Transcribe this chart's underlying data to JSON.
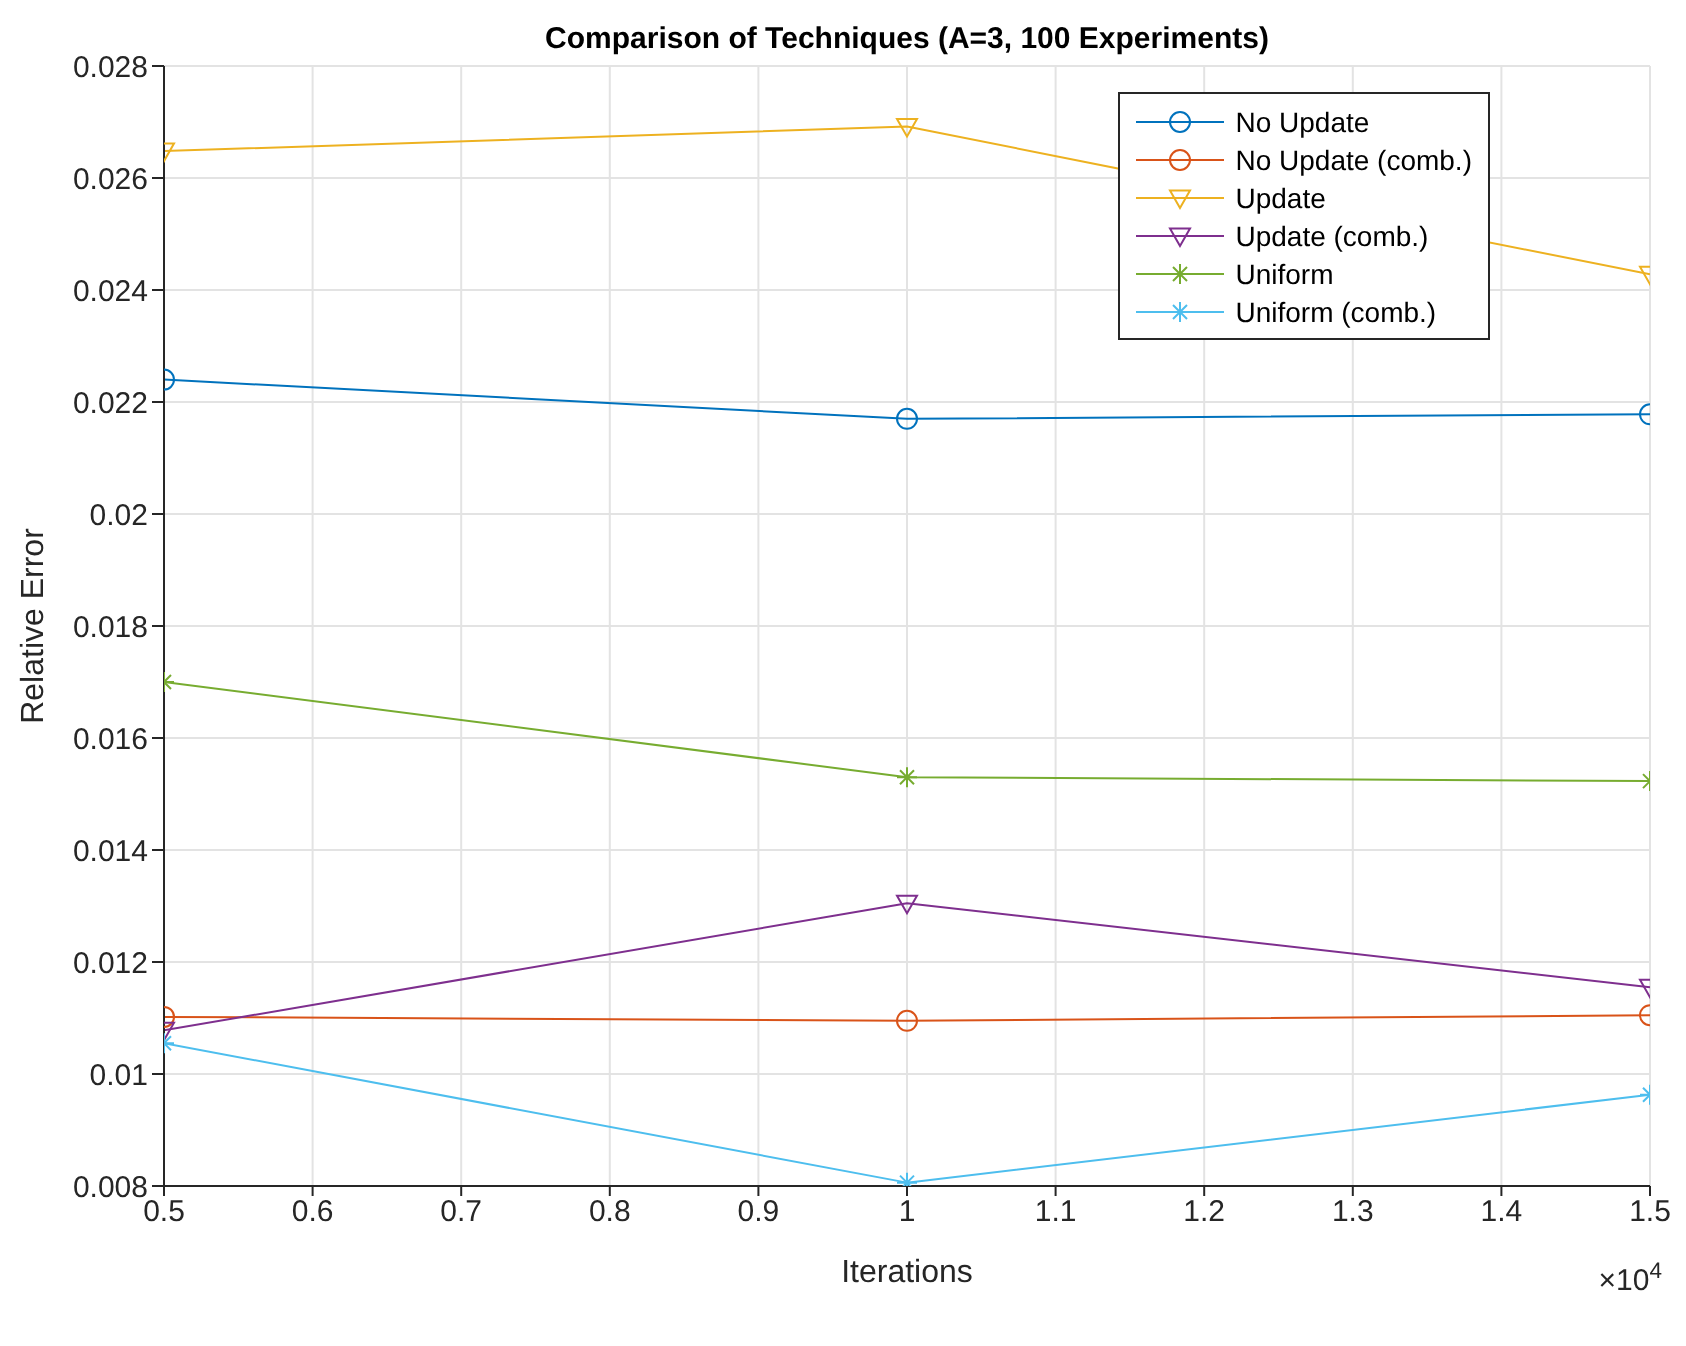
{
  "chart_data": {
    "type": "line",
    "title": "Comparison of Techniques (A=3, 100 Experiments)",
    "xlabel": "Iterations",
    "ylabel": "Relative Error",
    "annotations": [
      "×10$^{4}$"
    ],
    "x": [
      0.5,
      1,
      1.5
    ],
    "xlim": [
      0.5,
      1.5
    ],
    "xticks": [
      0.5,
      0.6,
      0.7,
      0.8,
      0.9,
      1,
      1.1,
      1.2,
      1.3,
      1.4,
      1.5
    ],
    "ylim": [
      0.008,
      0.028
    ],
    "yticks": [
      0.008,
      0.01,
      0.012,
      0.014,
      0.016,
      0.018,
      0.02,
      0.022,
      0.024,
      0.026,
      0.028
    ],
    "grid": true,
    "legend": "top right",
    "line_style": "solid",
    "series": [
      {
        "name": "No Update",
        "color": "#0072bd",
        "marker": "circle",
        "values": [
          0.0224,
          0.0217,
          0.02178
        ]
      },
      {
        "name": "No Update (comb.)",
        "color": "#d95319",
        "marker": "circle",
        "values": [
          0.01102,
          0.01095,
          0.01105
        ]
      },
      {
        "name": "Update",
        "color": "#edb120",
        "marker": "triangle",
        "values": [
          0.02648,
          0.02692,
          0.02428
        ]
      },
      {
        "name": "Update (comb.)",
        "color": "#7e2f8e",
        "marker": "triangle",
        "values": [
          0.01078,
          0.01305,
          0.01155
        ]
      },
      {
        "name": "Uniform",
        "color": "#77ac30",
        "marker": "cross",
        "values": [
          0.017,
          0.0153,
          0.01523
        ]
      },
      {
        "name": "Uniform (comb.)",
        "color": "#4dbeee",
        "marker": "cross",
        "values": [
          0.01055,
          0.00806,
          0.00963
        ]
      }
    ]
  }
}
